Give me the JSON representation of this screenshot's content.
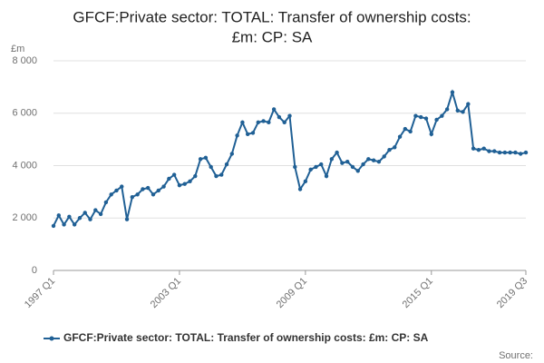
{
  "chart_data": {
    "type": "line",
    "title": [
      "GFCF:Private sector: TOTAL: Transfer of ownership costs:",
      "£m: CP: SA"
    ],
    "y_label": "£m",
    "source": "Source:",
    "categories": [
      "1997 Q1",
      null,
      null,
      null,
      null,
      null,
      null,
      null,
      null,
      null,
      null,
      null,
      null,
      null,
      null,
      null,
      null,
      null,
      null,
      null,
      null,
      null,
      null,
      null,
      "2003 Q1",
      null,
      null,
      null,
      null,
      null,
      null,
      null,
      null,
      null,
      null,
      null,
      null,
      null,
      null,
      null,
      null,
      null,
      null,
      null,
      null,
      null,
      null,
      null,
      "2009 Q1",
      null,
      null,
      null,
      null,
      null,
      null,
      null,
      null,
      null,
      null,
      null,
      null,
      null,
      null,
      null,
      null,
      null,
      null,
      null,
      null,
      null,
      null,
      null,
      "2015 Q1",
      null,
      null,
      null,
      null,
      null,
      null,
      null,
      null,
      null,
      null,
      null,
      null,
      null,
      null,
      null,
      null,
      null,
      "2019 Q3"
    ],
    "series": [
      {
        "name": "GFCF:Private sector: TOTAL: Transfer of ownership costs: £m: CP: SA",
        "color": "#206095",
        "values": [
          1700,
          2100,
          1750,
          2050,
          1750,
          2000,
          2200,
          1950,
          2300,
          2150,
          2600,
          2900,
          3050,
          3200,
          1950,
          2800,
          2900,
          3100,
          3150,
          2900,
          3050,
          3200,
          3500,
          3650,
          3250,
          3300,
          3400,
          3600,
          4250,
          4300,
          3950,
          3600,
          3650,
          4050,
          4450,
          5150,
          5650,
          5200,
          5250,
          5650,
          5700,
          5650,
          6150,
          5850,
          5650,
          5900,
          3950,
          3100,
          3400,
          3850,
          3950,
          4050,
          3600,
          4250,
          4500,
          4100,
          4150,
          3950,
          3800,
          4050,
          4250,
          4200,
          4150,
          4350,
          4600,
          4700,
          5100,
          5400,
          5300,
          5900,
          5850,
          5800,
          5200,
          5750,
          5900,
          6150,
          6800,
          6100,
          6050,
          6350,
          4650,
          4600,
          4650,
          4550,
          4550,
          4500,
          4500,
          4500,
          4500,
          4450,
          4500
        ]
      }
    ],
    "ylim": [
      0,
      8000
    ],
    "yticks": [
      0,
      {
        "value": 2000,
        "label": "2 000"
      },
      {
        "value": 4000,
        "label": "4 000"
      },
      {
        "value": 6000,
        "label": "6 000"
      },
      {
        "value": 8000,
        "label": "8 000"
      }
    ],
    "grid": true,
    "legend": "bottom"
  }
}
